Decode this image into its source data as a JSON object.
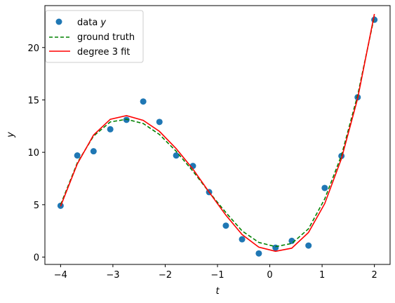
{
  "chart_data": {
    "type": "scatter",
    "title": "",
    "xlabel": "t",
    "ylabel": "y",
    "xlim": [
      -4.3,
      2.3
    ],
    "ylim": [
      -0.7,
      24.0
    ],
    "xticks": [
      -4,
      -3,
      -2,
      -1,
      0,
      1,
      2
    ],
    "xtick_labels": [
      "−4",
      "−3",
      "−2",
      "−1",
      "0",
      "1",
      "2"
    ],
    "yticks": [
      0,
      5,
      10,
      15,
      20
    ],
    "ytick_labels": [
      "0",
      "5",
      "10",
      "15",
      "20"
    ],
    "grid": false,
    "legend_position": "top-left",
    "series": [
      {
        "name": "data y",
        "kind": "scatter",
        "color": "#1f77b4",
        "x": [
          -4.0,
          -3.68,
          -3.37,
          -3.05,
          -2.74,
          -2.42,
          -2.11,
          -1.79,
          -1.47,
          -1.16,
          -0.84,
          -0.53,
          -0.21,
          0.11,
          0.42,
          0.74,
          1.05,
          1.37,
          1.68,
          2.0
        ],
        "y": [
          4.9,
          9.7,
          10.1,
          12.2,
          13.1,
          14.85,
          12.9,
          9.7,
          8.7,
          6.2,
          3.0,
          1.7,
          0.35,
          0.9,
          1.55,
          1.1,
          6.6,
          9.65,
          15.25,
          22.65
        ]
      },
      {
        "name": "ground truth",
        "kind": "line",
        "style": "dashed",
        "color": "#008000",
        "x": [
          -4.0,
          -3.68,
          -3.37,
          -3.05,
          -2.74,
          -2.42,
          -2.11,
          -1.79,
          -1.47,
          -1.16,
          -0.84,
          -0.53,
          -0.21,
          0.11,
          0.42,
          0.74,
          1.05,
          1.37,
          1.68,
          2.0
        ],
        "y": [
          5.0,
          9.0,
          11.55,
          12.9,
          13.15,
          12.75,
          11.7,
          10.1,
          8.2,
          6.2,
          4.25,
          2.5,
          1.4,
          1.0,
          1.3,
          2.7,
          5.55,
          9.7,
          15.45,
          23.0
        ]
      },
      {
        "name": "degree 3 fit",
        "kind": "line",
        "style": "solid",
        "color": "#ff0000",
        "x": [
          -4.0,
          -3.68,
          -3.37,
          -3.05,
          -2.74,
          -2.42,
          -2.11,
          -1.79,
          -1.47,
          -1.16,
          -0.84,
          -0.53,
          -0.21,
          0.11,
          0.42,
          0.74,
          1.05,
          1.37,
          1.68,
          2.0
        ],
        "y": [
          4.85,
          8.9,
          11.65,
          13.15,
          13.5,
          13.05,
          12.0,
          10.35,
          8.4,
          6.2,
          4.0,
          2.15,
          0.95,
          0.55,
          0.85,
          2.35,
          5.1,
          9.4,
          15.15,
          23.2
        ]
      }
    ]
  },
  "legend": {
    "entries": [
      {
        "prefix": "data ",
        "italic": "y"
      },
      {
        "prefix": "ground truth",
        "italic": ""
      },
      {
        "prefix": "degree 3 fit",
        "italic": ""
      }
    ]
  }
}
